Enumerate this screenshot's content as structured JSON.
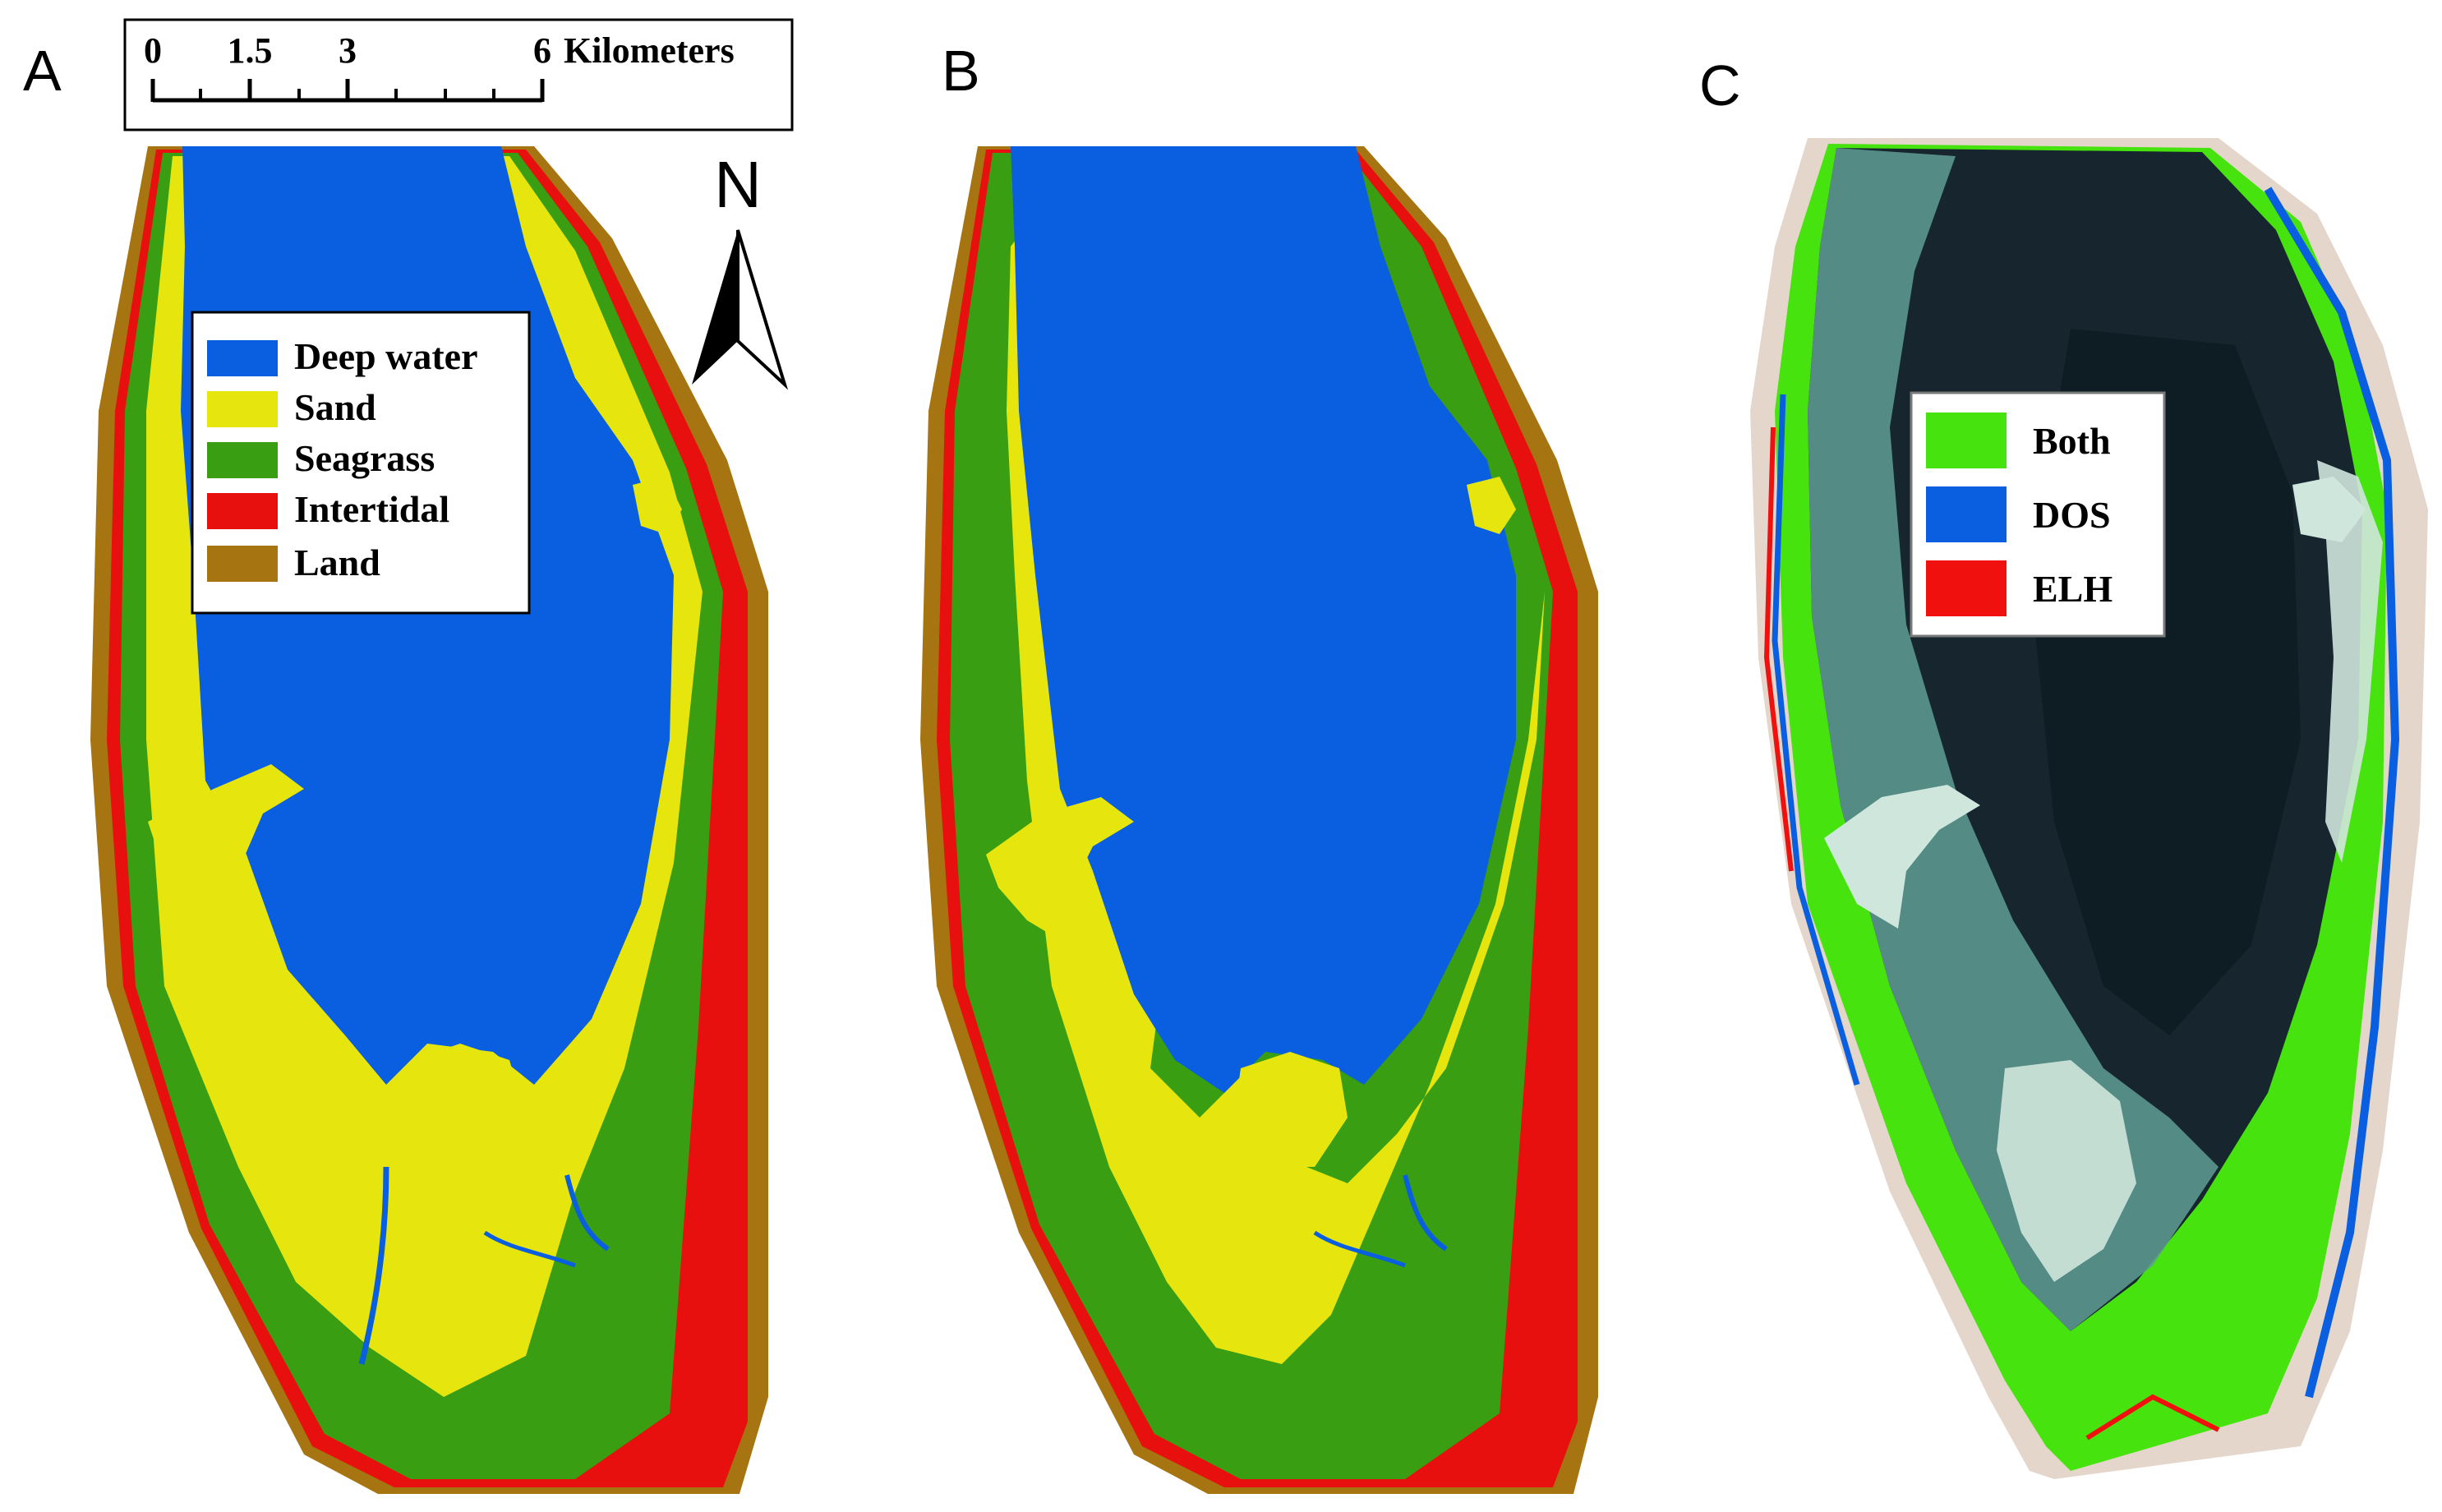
{
  "panels": [
    {
      "letter": "A"
    },
    {
      "letter": "B"
    },
    {
      "letter": "C"
    }
  ],
  "scale_bar": {
    "ticks": [
      "0",
      "1.5",
      "3",
      "6"
    ],
    "unit": "Kilometers"
  },
  "north_arrow": {
    "label": "N"
  },
  "legend_classes": {
    "items": [
      {
        "label": "Deep water",
        "color": "#0a5ee0"
      },
      {
        "label": "Sand",
        "color": "#e6e60e"
      },
      {
        "label": "Seagrass",
        "color": "#3a9e12"
      },
      {
        "label": "Intertidal",
        "color": "#e8100e"
      },
      {
        "label": "Land",
        "color": "#a67410"
      }
    ]
  },
  "legend_comparison": {
    "items": [
      {
        "label": "Both",
        "color": "#46e30e"
      },
      {
        "label": "DOS",
        "color": "#0a5ee0"
      },
      {
        "label": "ELH",
        "color": "#f0100e"
      }
    ]
  },
  "colors": {
    "satellite_dark": "#16252e",
    "satellite_shallow": "#5f9e93",
    "sand_flat": "#cfe6dc",
    "land_speckle": "#e5d6cc"
  }
}
